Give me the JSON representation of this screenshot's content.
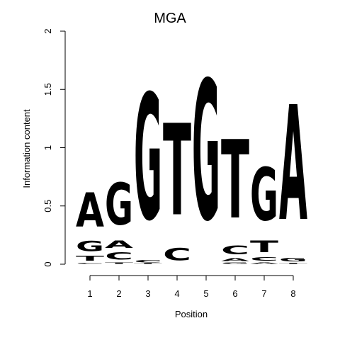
{
  "chart_data": {
    "type": "sequence-logo",
    "title": "MGA",
    "xlabel": "Position",
    "ylabel": "Information content",
    "ylim": [
      0,
      2
    ],
    "yticks": [
      0,
      0.5,
      1,
      1.5,
      2
    ],
    "ytick_labels": [
      "0",
      "0.5",
      "1",
      "1.5",
      "2"
    ],
    "positions": [
      "1",
      "2",
      "3",
      "4",
      "5",
      "6",
      "7",
      "8"
    ],
    "colors": {
      "A": "#00ee00",
      "C": "#0000ee",
      "G": "#ffa500",
      "T": "#ff0000"
    },
    "stacks": [
      [
        {
          "letter": "C",
          "height": 0.015
        },
        {
          "letter": "T",
          "height": 0.07
        },
        {
          "letter": "G",
          "height": 0.14
        },
        {
          "letter": "A",
          "height": 0.47
        }
      ],
      [
        {
          "letter": "T",
          "height": 0.02
        },
        {
          "letter": "C",
          "height": 0.1
        },
        {
          "letter": "A",
          "height": 0.1
        },
        {
          "letter": "G",
          "height": 0.58
        }
      ],
      [
        {
          "letter": "T",
          "height": 0.01
        },
        {
          "letter": "C",
          "height": 0.03
        },
        {
          "letter": "G",
          "height": 1.73
        }
      ],
      [
        {
          "letter": "C",
          "height": 0.17
        },
        {
          "letter": "T",
          "height": 1.26
        }
      ],
      [
        {
          "letter": "G",
          "height": 1.92
        }
      ],
      [
        {
          "letter": "G",
          "height": 0.02
        },
        {
          "letter": "A",
          "height": 0.04
        },
        {
          "letter": "C",
          "height": 0.12
        },
        {
          "letter": "T",
          "height": 1.08
        }
      ],
      [
        {
          "letter": "A",
          "height": 0.02
        },
        {
          "letter": "C",
          "height": 0.05
        },
        {
          "letter": "T",
          "height": 0.16
        },
        {
          "letter": "G",
          "height": 0.73
        }
      ],
      [
        {
          "letter": "T",
          "height": 0.015
        },
        {
          "letter": "G",
          "height": 0.05
        },
        {
          "letter": "A",
          "height": 1.58
        }
      ]
    ]
  }
}
